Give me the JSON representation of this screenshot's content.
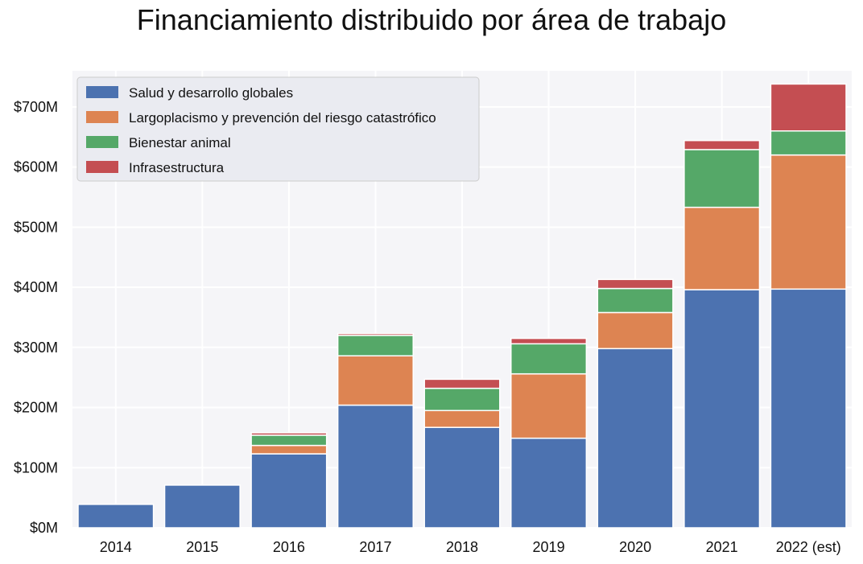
{
  "chart_data": {
    "type": "bar",
    "stacked": true,
    "title": "Financiamiento distribuido por área de trabajo",
    "xlabel": "",
    "ylabel": "",
    "categories": [
      "2014",
      "2015",
      "2016",
      "2017",
      "2018",
      "2019",
      "2020",
      "2021",
      "2022 (est)"
    ],
    "ylim": [
      0,
      760
    ],
    "yticks": [
      0,
      100,
      200,
      300,
      400,
      500,
      600,
      700
    ],
    "ytick_labels": [
      "$0M",
      "$100M",
      "$200M",
      "$300M",
      "$400M",
      "$500M",
      "$600M",
      "$700M"
    ],
    "grid": true,
    "legend_position": "top-left",
    "series": [
      {
        "name": "Salud y desarrollo globales",
        "color": "#4c72b0",
        "values": [
          39,
          71,
          123,
          204,
          167,
          149,
          298,
          396,
          397
        ]
      },
      {
        "name": "Largoplacismo y prevención del riesgo catastrófico",
        "color": "#dd8452",
        "values": [
          0,
          0,
          14,
          82,
          28,
          107,
          60,
          137,
          223
        ]
      },
      {
        "name": "Bienestar animal",
        "color": "#55a868",
        "values": [
          0,
          0,
          17,
          34,
          37,
          50,
          40,
          96,
          40
        ]
      },
      {
        "name": "Infrasestructura",
        "color": "#c44e52",
        "values": [
          0,
          0,
          4,
          3,
          15,
          9,
          15,
          15,
          78
        ]
      }
    ]
  }
}
